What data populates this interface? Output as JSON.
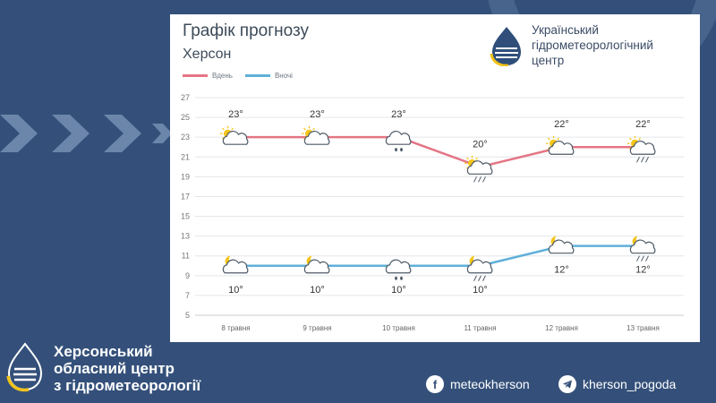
{
  "chart_data": {
    "type": "line",
    "title": "Графік прогнозу",
    "subtitle": "Херсон",
    "categories": [
      "8 травня",
      "9 травня",
      "10 травня",
      "11 травня",
      "12 травня",
      "13 травня"
    ],
    "series": [
      {
        "name": "Вдень",
        "color": "#e47585",
        "values": [
          23,
          23,
          23,
          20,
          22,
          22
        ],
        "labels": [
          "23°",
          "23°",
          "23°",
          "20°",
          "22°",
          "22°"
        ],
        "icons": [
          "partly-cloudy-sun-icon",
          "partly-cloudy-sun-icon",
          "cloud-rain-icon",
          "partly-cloudy-sun-rain-icon",
          "partly-cloudy-sun-icon",
          "partly-cloudy-sun-rain-icon"
        ]
      },
      {
        "name": "Вночі",
        "color": "#5fb0d9",
        "values": [
          10,
          10,
          10,
          10,
          12,
          12
        ],
        "labels": [
          "10°",
          "10°",
          "10°",
          "10°",
          "12°",
          "12°"
        ],
        "icons": [
          "partly-cloudy-moon-icon",
          "partly-cloudy-moon-icon",
          "cloud-rain-icon",
          "partly-cloudy-moon-rain-icon",
          "partly-cloudy-moon-icon",
          "partly-cloudy-moon-rain-icon"
        ]
      }
    ],
    "ylim": [
      5,
      27
    ],
    "yticks": [
      5,
      7,
      9,
      11,
      13,
      15,
      17,
      19,
      21,
      23,
      25,
      27
    ],
    "grid": true,
    "legend": "top-left"
  },
  "org_header": {
    "line1": "Український",
    "line2": "гідрометеорологічний",
    "line3": "центр"
  },
  "footer": {
    "org_line1": "Херсонський",
    "org_line2": "обласний центр",
    "org_line3": "з гідрометеорології",
    "facebook_label": "meteokherson",
    "telegram_label": "kherson_pogoda"
  },
  "colors": {
    "background": "#34507a",
    "day_line": "#e47585",
    "night_line": "#5fb0d9"
  }
}
